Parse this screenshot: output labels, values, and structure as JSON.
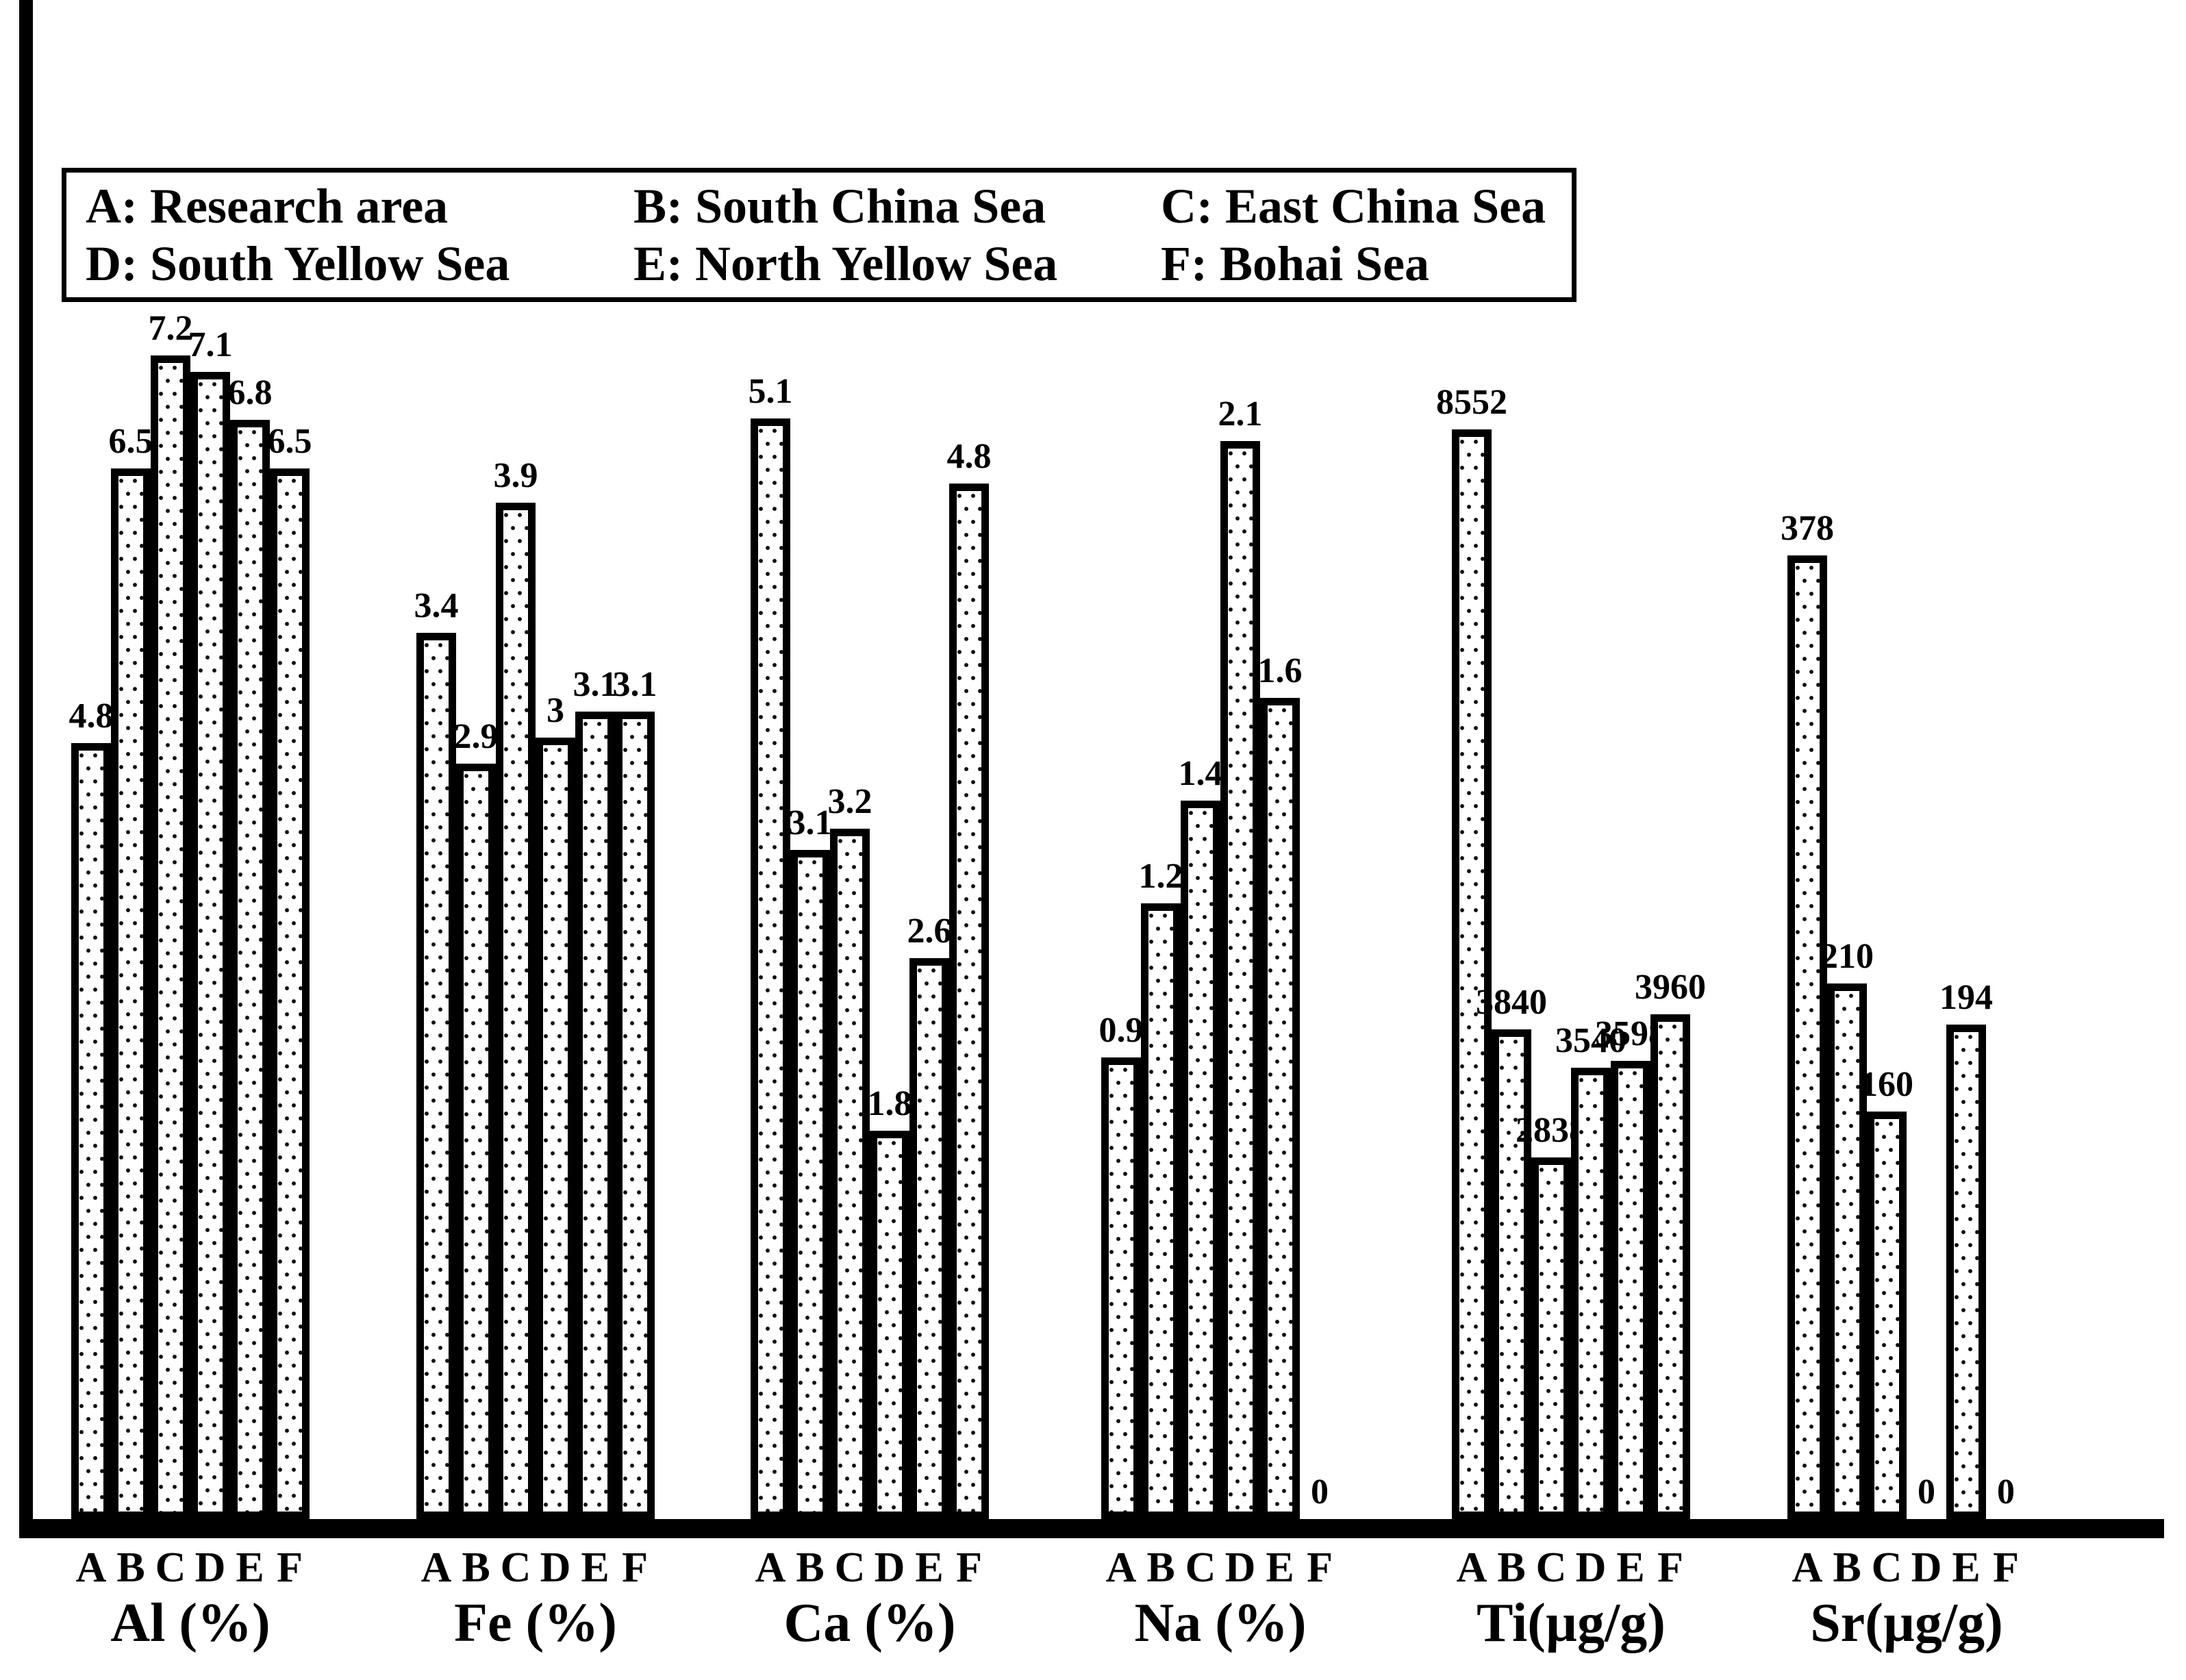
{
  "colors": {
    "background": "#ffffff",
    "bar_fill": "#ffffff",
    "bar_border": "#000000",
    "text": "#000000"
  },
  "legend": {
    "items": [
      "A: Research area",
      "B: South China Sea",
      "C: East China Sea",
      "D: South Yellow Sea",
      "E: North Yellow Sea",
      "F: Bohai Sea"
    ]
  },
  "chart_data": {
    "type": "bar",
    "grouping": "six per-element panels sharing one baseline, bars contiguous within each panel",
    "categories": [
      "A",
      "B",
      "C",
      "D",
      "E",
      "F"
    ],
    "groups": [
      {
        "label": "Al (%)",
        "values": [
          4.8,
          6.5,
          7.2,
          7.1,
          6.8,
          6.5
        ],
        "ylim": [
          0,
          9.4
        ]
      },
      {
        "label": "Fe (%)",
        "values": [
          3.4,
          2.9,
          3.9,
          3,
          3.1,
          3.1
        ],
        "ylim": [
          0,
          5.83
        ]
      },
      {
        "label": "Ca (%)",
        "values": [
          5.1,
          3.1,
          3.2,
          1.8,
          2.6,
          4.8
        ],
        "ylim": [
          0,
          7.04
        ]
      },
      {
        "label": "Na (%)",
        "values": [
          0.9,
          1.2,
          1.4,
          2.1,
          1.6,
          0
        ],
        "ylim": [
          0,
          2.96
        ]
      },
      {
        "label": "Ti(µg/g)",
        "values": [
          8552,
          3840,
          2838,
          3540,
          3598,
          3960
        ],
        "ylim": [
          0,
          11920
        ]
      },
      {
        "label": "Sr(µg/g)",
        "values": [
          378,
          210,
          160,
          0,
          194,
          0
        ],
        "ylim": [
          0,
          596
        ]
      }
    ],
    "bar_fill_pattern": "black dot stipple on white, thick black outlines",
    "value_labels": "bold number above each bar top; zero values labeled 0 just above baseline",
    "axes": {
      "y_ticks": "none shown",
      "x_ticks": "category letters A-F under each bar, element label under each group"
    },
    "legend_position": "top-left box, 2 rows x 3 columns",
    "grid": false
  }
}
